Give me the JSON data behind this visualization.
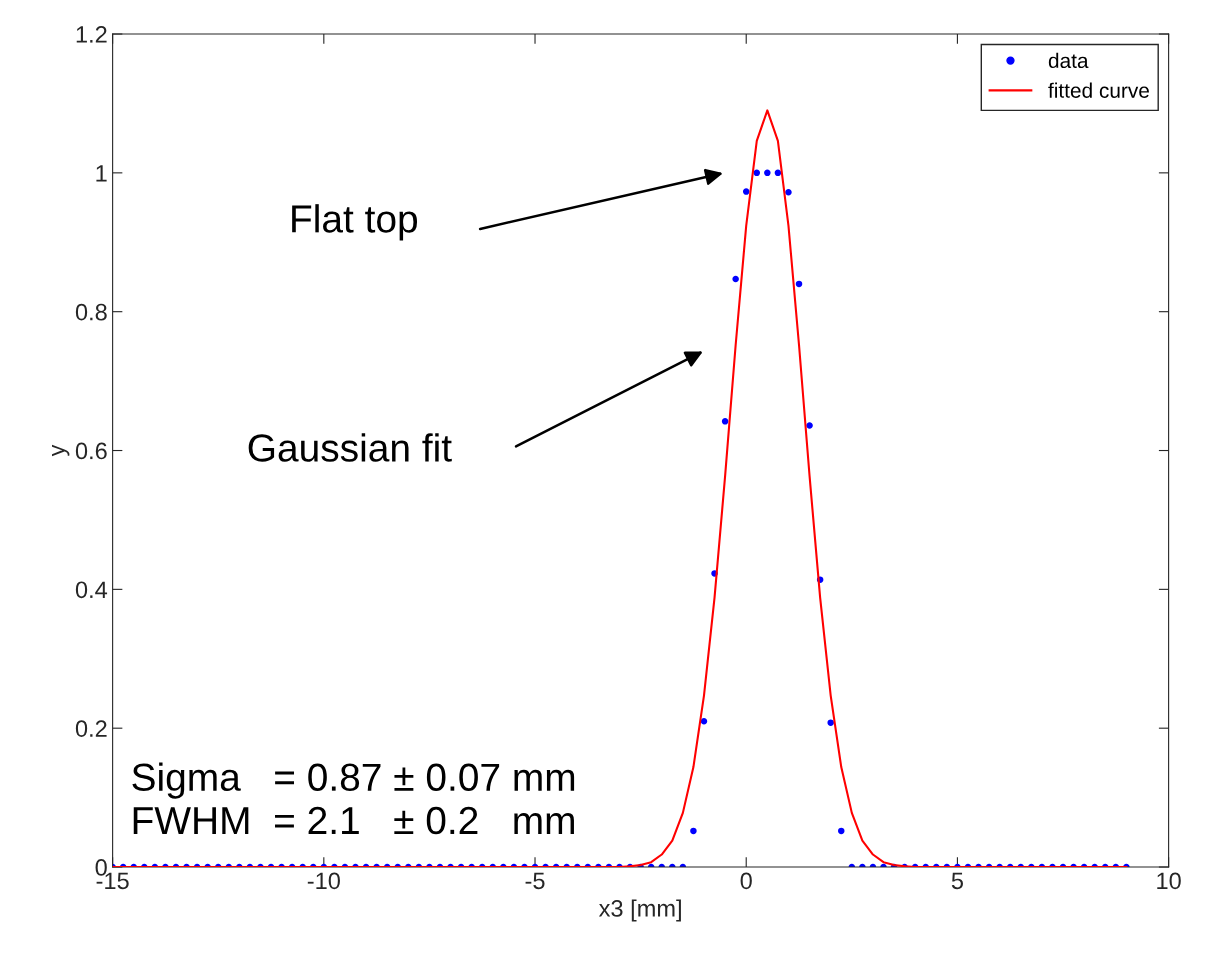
{
  "chart_data": {
    "type": "scatter",
    "xlabel": "x3 [mm]",
    "ylabel": "y",
    "xlim": [
      -15,
      10
    ],
    "ylim": [
      0,
      1.2
    ],
    "xticks": [
      -15,
      -10,
      -5,
      0,
      5,
      10
    ],
    "yticks": [
      0,
      0.2,
      0.4,
      0.6,
      0.8,
      1,
      1.2
    ],
    "grid": false,
    "legend": "top right",
    "series": [
      {
        "name": "data",
        "marker": "circle",
        "color": "#0000ff",
        "x": [
          -15,
          -14.75,
          -14.5,
          -14.25,
          -14,
          -13.75,
          -13.5,
          -13.25,
          -13,
          -12.75,
          -12.5,
          -12.25,
          -12,
          -11.75,
          -11.5,
          -11.25,
          -11,
          -10.75,
          -10.5,
          -10.25,
          -10,
          -9.75,
          -9.5,
          -9.25,
          -9,
          -8.75,
          -8.5,
          -8.25,
          -8,
          -7.75,
          -7.5,
          -7.25,
          -7,
          -6.75,
          -6.5,
          -6.25,
          -6,
          -5.75,
          -5.5,
          -5.25,
          -5,
          -4.75,
          -4.5,
          -4.25,
          -4,
          -3.75,
          -3.5,
          -3.25,
          -3,
          -2.75,
          -2.5,
          -2.25,
          -2,
          -1.75,
          -1.5,
          -1.25,
          -1,
          -0.75,
          -0.5,
          -0.25,
          0,
          0.25,
          0.5,
          0.75,
          1,
          1.25,
          1.5,
          1.75,
          2,
          2.25,
          2.5,
          2.75,
          3,
          3.25,
          3.5,
          3.75,
          4,
          4.25,
          4.5,
          4.75,
          5,
          5.25,
          5.5,
          5.75,
          6,
          6.25,
          6.5,
          6.75,
          7,
          7.25,
          7.5,
          7.75,
          8,
          8.25,
          8.5,
          8.75,
          9
        ],
        "values": [
          0,
          0,
          0,
          0,
          0,
          0,
          0,
          0,
          0,
          0,
          0,
          0,
          0,
          0,
          0,
          0,
          0,
          0,
          0,
          0,
          0,
          0,
          0,
          0,
          0,
          0,
          0,
          0,
          0,
          0,
          0,
          0,
          0,
          0,
          0,
          0,
          0,
          0,
          0,
          0,
          0,
          0,
          0,
          0,
          0,
          0,
          0,
          0,
          0,
          0,
          0,
          0,
          0,
          0,
          0,
          0.052,
          0.21,
          0.423,
          0.642,
          0.847,
          0.973,
          1.0,
          1.0,
          1.0,
          0.972,
          0.84,
          0.636,
          0.414,
          0.208,
          0.052,
          0,
          0,
          0,
          0,
          0,
          0,
          0,
          0,
          0,
          0,
          0,
          0,
          0,
          0,
          0,
          0,
          0,
          0,
          0,
          0,
          0,
          0,
          0,
          0,
          0,
          0,
          0
        ]
      },
      {
        "name": "fitted curve",
        "type": "line",
        "marker": "none",
        "line_style": "solid",
        "color": "#ff0000",
        "x": [
          -15,
          -3,
          -2.75,
          -2.5,
          -2.25,
          -2,
          -1.75,
          -1.5,
          -1.25,
          -1,
          -0.75,
          -0.5,
          -0.25,
          0,
          0.25,
          0.5,
          0.75,
          1,
          1.25,
          1.5,
          1.75,
          2,
          2.25,
          2.5,
          2.75,
          3,
          3.25,
          3.5,
          3.75,
          4,
          9
        ],
        "values": [
          0,
          0,
          0.001,
          0.003,
          0.007,
          0.018,
          0.038,
          0.078,
          0.144,
          0.247,
          0.388,
          0.563,
          0.752,
          0.924,
          1.046,
          1.09,
          1.046,
          0.924,
          0.752,
          0.563,
          0.388,
          0.247,
          0.144,
          0.078,
          0.038,
          0.018,
          0.007,
          0.003,
          0.001,
          0,
          0
        ]
      }
    ],
    "annotations": [
      "Flat top",
      "Gaussian fit",
      "Sigma   = 0.87 ± 0.07 mm\nFWHM  = 2.1   ± 0.2   mm"
    ]
  }
}
